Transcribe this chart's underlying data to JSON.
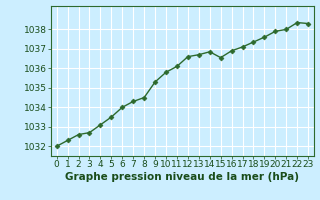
{
  "x": [
    0,
    1,
    2,
    3,
    4,
    5,
    6,
    7,
    8,
    9,
    10,
    11,
    12,
    13,
    14,
    15,
    16,
    17,
    18,
    19,
    20,
    21,
    22,
    23
  ],
  "y": [
    1032.0,
    1032.3,
    1032.6,
    1032.7,
    1033.1,
    1033.5,
    1034.0,
    1034.3,
    1034.5,
    1035.3,
    1035.8,
    1036.1,
    1036.6,
    1036.7,
    1036.85,
    1036.55,
    1036.9,
    1037.1,
    1037.35,
    1037.6,
    1037.9,
    1038.0,
    1038.35,
    1038.3
  ],
  "line_color": "#2d6a2d",
  "marker": "D",
  "marker_size": 2.5,
  "bg_color": "#cceeff",
  "grid_color": "#ffffff",
  "title": "Graphe pression niveau de la mer (hPa)",
  "title_color": "#1a4d1a",
  "title_fontsize": 7.5,
  "axis_color": "#2d6a2d",
  "tick_color": "#1a4d1a",
  "tick_fontsize": 6.5,
  "ylim": [
    1031.5,
    1039.2
  ],
  "yticks": [
    1032,
    1033,
    1034,
    1035,
    1036,
    1037,
    1038
  ],
  "xlim": [
    -0.5,
    23.5
  ],
  "xticks": [
    0,
    1,
    2,
    3,
    4,
    5,
    6,
    7,
    8,
    9,
    10,
    11,
    12,
    13,
    14,
    15,
    16,
    17,
    18,
    19,
    20,
    21,
    22,
    23
  ]
}
